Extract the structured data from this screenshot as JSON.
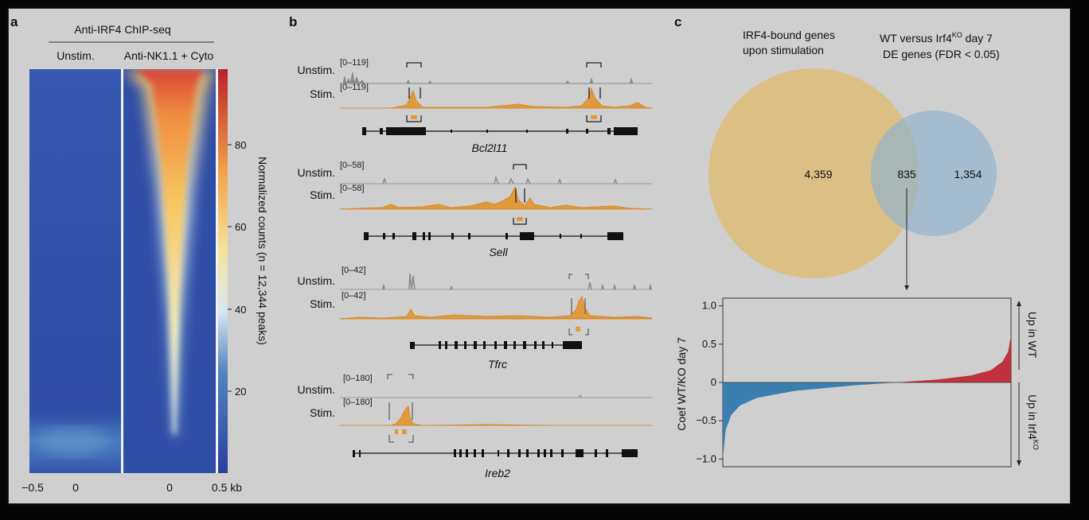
{
  "panel_a": {
    "letter": "a",
    "header": "Anti-IRF4 ChIP-seq",
    "col_left": "Unstim.",
    "col_right": "Anti-NK1.1 + Cyto",
    "x_ticks": [
      "−0.5",
      "0",
      "0",
      "0.5 kb"
    ],
    "colorbar_ticks": [
      "80",
      "60",
      "40",
      "20"
    ],
    "colorbar_label": "Normalized counts (n = 12,344 peaks)"
  },
  "panel_b": {
    "letter": "b",
    "tracks": [
      {
        "unstim_label": "Unstim.",
        "stim_label": "Stim.",
        "unstim_range": "[0–119]",
        "stim_range": "[0–119]",
        "gene": "Bcl2l11"
      },
      {
        "unstim_label": "Unstim.",
        "stim_label": "Stim.",
        "unstim_range": "[0–58]",
        "stim_range": "[0–58]",
        "gene": "Sell"
      },
      {
        "unstim_label": "Unstim.",
        "stim_label": "Stim.",
        "unstim_range": "[0–42]",
        "stim_range": "[0–42]",
        "gene": "Tfrc"
      },
      {
        "unstim_label": "Unstim.",
        "stim_label": "Stim.",
        "unstim_range": "[0–180]",
        "stim_range": "[0–180]",
        "gene": "Ireb2"
      }
    ]
  },
  "panel_c": {
    "letter": "c",
    "venn_left_label_1": "IRF4-bound genes",
    "venn_left_label_2": "upon stimulation",
    "venn_right_label_1": "WT versus Irf4",
    "venn_right_label_sup": "KO",
    "venn_right_label_1b": " day 7",
    "venn_right_label_2": "DE genes (FDR < 0.05)",
    "count_left": "4,359",
    "count_overlap": "835",
    "count_right": "1,354",
    "left_color": "#e0b968",
    "right_color": "#8fb3cb",
    "plot_ylabel": "Coef WT/KO day 7",
    "plot_yticks": [
      "1.0",
      "0.5",
      "0",
      "−0.5",
      "−1.0"
    ],
    "up_wt": "Up in WT",
    "up_ko_prefix": "Up in Irf4",
    "up_ko_sup": "KO",
    "neg_color": "#3a7fb0",
    "pos_color": "#c0313b"
  },
  "chart_data": {
    "type": "area",
    "x": "835 overlapping genes ranked by coefficient",
    "ylabel": "Coef WT/KO day 7",
    "ylim": [
      -1.1,
      1.1
    ],
    "y_ticks": [
      1.0,
      0.5,
      0,
      -0.5,
      -1.0
    ],
    "ranked_profile": [
      {
        "rank_fraction": 0.0,
        "value": -1.0
      },
      {
        "rank_fraction": 0.01,
        "value": -0.62
      },
      {
        "rank_fraction": 0.03,
        "value": -0.42
      },
      {
        "rank_fraction": 0.06,
        "value": -0.3
      },
      {
        "rank_fraction": 0.12,
        "value": -0.2
      },
      {
        "rank_fraction": 0.25,
        "value": -0.11
      },
      {
        "rank_fraction": 0.45,
        "value": -0.04
      },
      {
        "rank_fraction": 0.6,
        "value": 0.0
      },
      {
        "rank_fraction": 0.75,
        "value": 0.04
      },
      {
        "rank_fraction": 0.86,
        "value": 0.09
      },
      {
        "rank_fraction": 0.93,
        "value": 0.16
      },
      {
        "rank_fraction": 0.97,
        "value": 0.27
      },
      {
        "rank_fraction": 0.99,
        "value": 0.4
      },
      {
        "rank_fraction": 1.0,
        "value": 0.62
      }
    ]
  }
}
